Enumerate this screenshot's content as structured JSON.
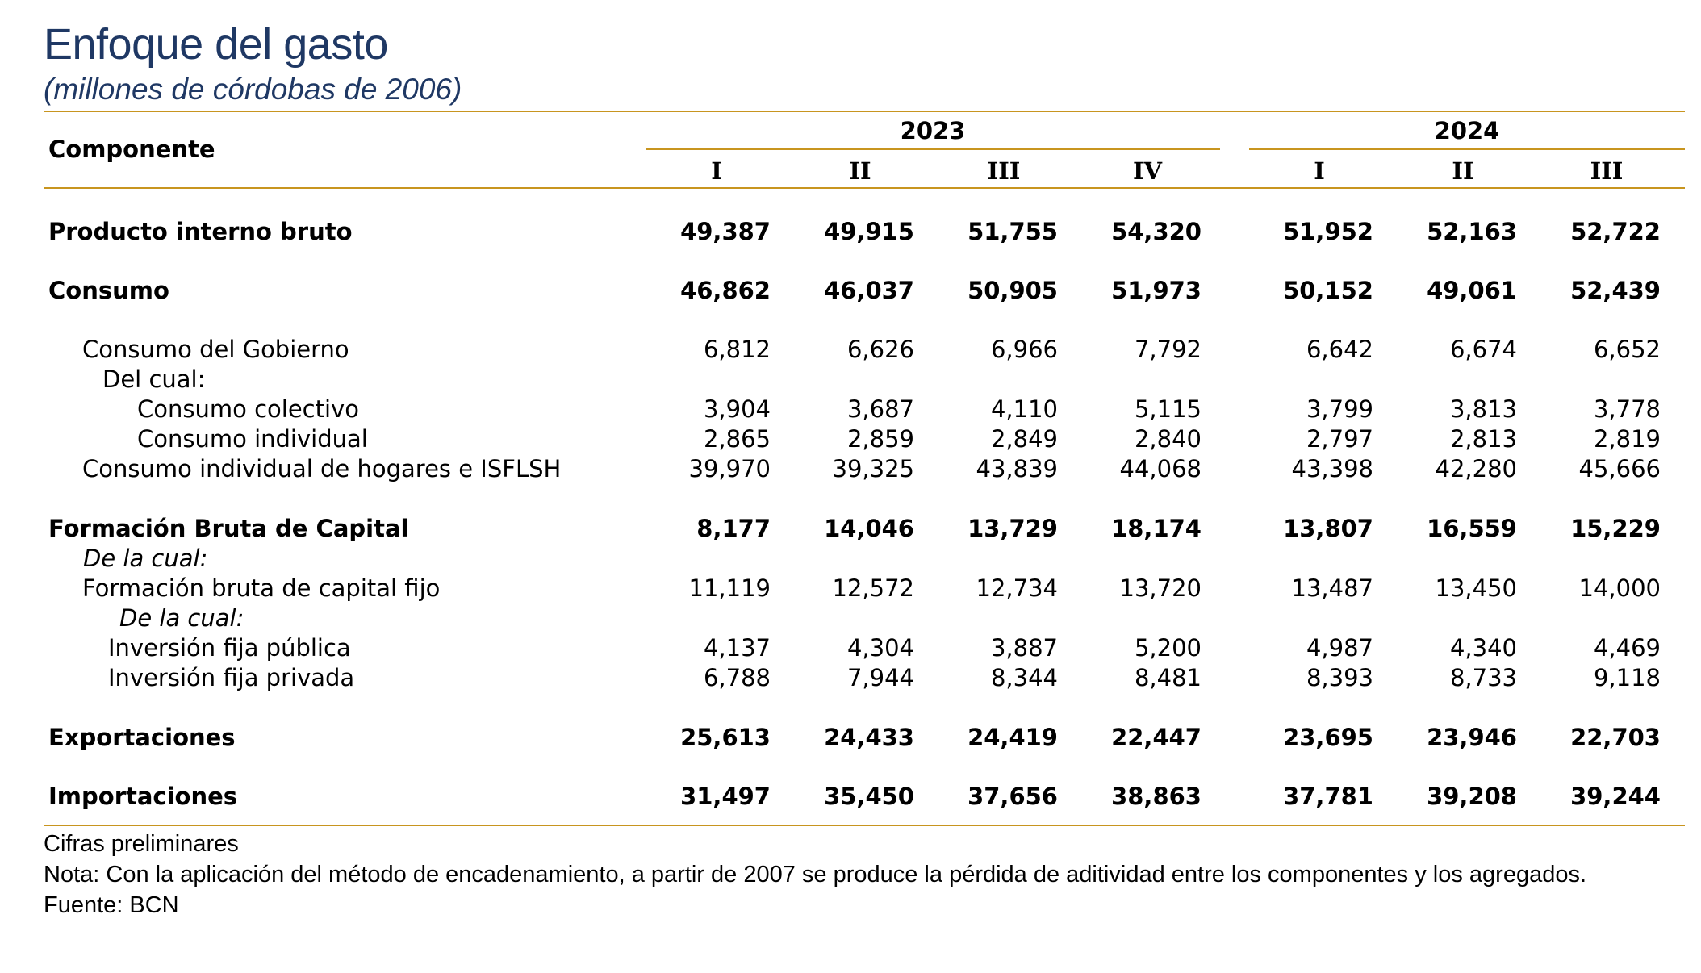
{
  "title": "Enfoque del gasto",
  "subtitle": "(millones de córdobas de 2006)",
  "colors": {
    "title": "#1f3864",
    "rule": "#c8951f"
  },
  "header": {
    "component": "Componente",
    "years": [
      "2023",
      "2024"
    ],
    "quarters": [
      "I",
      "II",
      "III",
      "IV",
      "I",
      "II",
      "III"
    ]
  },
  "rows": [
    {
      "label": "Producto interno bruto",
      "style": "bold",
      "values": [
        "49,387",
        "49,915",
        "51,755",
        "54,320",
        "51,952",
        "52,163",
        "52,722"
      ]
    },
    {
      "label": "Consumo",
      "style": "bold",
      "values": [
        "46,862",
        "46,037",
        "50,905",
        "51,973",
        "50,152",
        "49,061",
        "52,439"
      ]
    },
    {
      "label": "Consumo del Gobierno",
      "style": "normal",
      "values": [
        "6,812",
        "6,626",
        "6,966",
        "7,792",
        "6,642",
        "6,674",
        "6,652"
      ]
    },
    {
      "label": "Del cual:",
      "style": "normal",
      "values": []
    },
    {
      "label": "Consumo colectivo",
      "style": "normal",
      "values": [
        "3,904",
        "3,687",
        "4,110",
        "5,115",
        "3,799",
        "3,813",
        "3,778"
      ]
    },
    {
      "label": "Consumo individual",
      "style": "normal",
      "values": [
        "2,865",
        "2,859",
        "2,849",
        "2,840",
        "2,797",
        "2,813",
        "2,819"
      ]
    },
    {
      "label": "Consumo individual de hogares e ISFLSH",
      "style": "normal",
      "values": [
        "39,970",
        "39,325",
        "43,839",
        "44,068",
        "43,398",
        "42,280",
        "45,666"
      ]
    },
    {
      "label": "Formación Bruta de Capital",
      "style": "bold",
      "values": [
        "8,177",
        "14,046",
        "13,729",
        "18,174",
        "13,807",
        "16,559",
        "15,229"
      ]
    },
    {
      "label": "De la cual:",
      "style": "italic",
      "values": []
    },
    {
      "label": "Formación bruta de capital fijo",
      "style": "normal",
      "values": [
        "11,119",
        "12,572",
        "12,734",
        "13,720",
        "13,487",
        "13,450",
        "14,000"
      ]
    },
    {
      "label": "De la cual:",
      "style": "italic",
      "values": []
    },
    {
      "label": "Inversión fija pública",
      "style": "normal",
      "values": [
        "4,137",
        "4,304",
        "3,887",
        "5,200",
        "4,987",
        "4,340",
        "4,469"
      ]
    },
    {
      "label": "Inversión fija privada",
      "style": "normal",
      "values": [
        "6,788",
        "7,944",
        "8,344",
        "8,481",
        "8,393",
        "8,733",
        "9,118"
      ]
    },
    {
      "label": "Exportaciones",
      "style": "bold",
      "values": [
        "25,613",
        "24,433",
        "24,419",
        "22,447",
        "23,695",
        "23,946",
        "22,703"
      ]
    },
    {
      "label": "Importaciones",
      "style": "bold",
      "values": [
        "31,497",
        "35,450",
        "37,656",
        "38,863",
        "37,781",
        "39,208",
        "39,244"
      ]
    }
  ],
  "footer": {
    "note1": "Cifras preliminares",
    "note2": "Nota: Con la aplicación del método de encadenamiento, a partir de 2007 se produce la pérdida de aditividad entre los componentes y los agregados.",
    "source": "Fuente: BCN"
  }
}
